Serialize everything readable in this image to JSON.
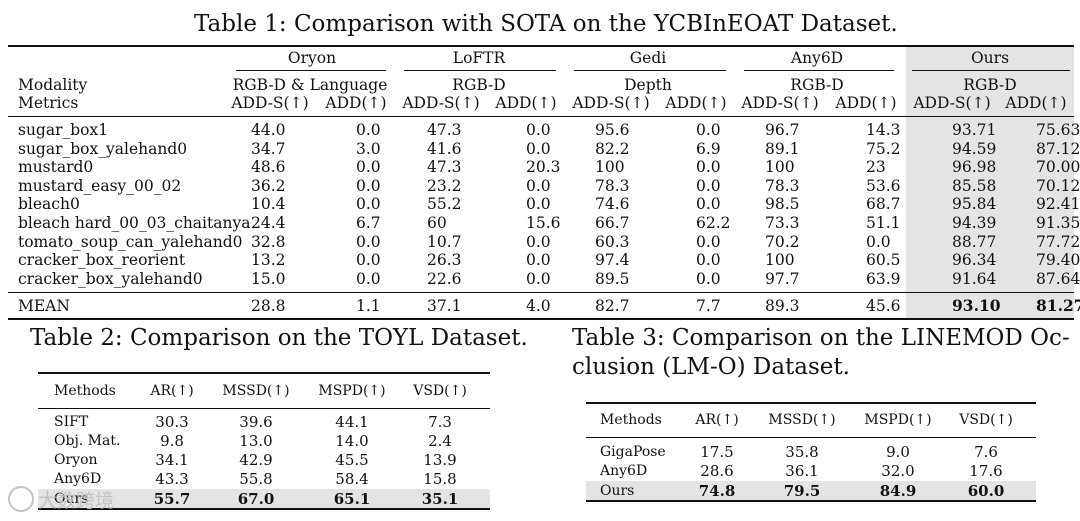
{
  "table1": {
    "caption": "Table 1:  Comparison with SOTA on the YCBInEOAT Dataset.",
    "methods": [
      "Oryon",
      "LoFTR",
      "Gedi",
      "Any6D",
      "Ours"
    ],
    "modalities": [
      "RGB-D & Language",
      "RGB-D",
      "Depth",
      "RGB-D",
      "RGB-D"
    ],
    "row_label_modality": "Modality",
    "row_label_metrics": "Metrics",
    "metric_a": "ADD-S(↑)",
    "metric_b": "ADD(↑)",
    "rows": [
      {
        "name": "sugar_box1",
        "v": [
          "44.0",
          "0.0",
          "47.3",
          "0.0",
          "95.6",
          "0.0",
          "96.7",
          "14.3",
          "93.71",
          "75.63"
        ]
      },
      {
        "name": "sugar_box_yalehand0",
        "v": [
          "34.7",
          "3.0",
          "41.6",
          "0.0",
          "82.2",
          "6.9",
          "89.1",
          "75.2",
          "94.59",
          "87.12"
        ]
      },
      {
        "name": "mustard0",
        "v": [
          "48.6",
          "0.0",
          "47.3",
          "20.3",
          "100",
          "0.0",
          "100",
          "23",
          "96.98",
          "70.00"
        ]
      },
      {
        "name": "mustard_easy_00_02",
        "v": [
          "36.2",
          "0.0",
          "23.2",
          "0.0",
          "78.3",
          "0.0",
          "78.3",
          "53.6",
          "85.58",
          "70.12"
        ]
      },
      {
        "name": "bleach0",
        "v": [
          "10.4",
          "0.0",
          "55.2",
          "0.0",
          "74.6",
          "0.0",
          "98.5",
          "68.7",
          "95.84",
          "92.41"
        ]
      },
      {
        "name": "bleach hard_00_03_chaitanya",
        "v": [
          "24.4",
          "6.7",
          "60",
          "15.6",
          "66.7",
          "62.2",
          "73.3",
          "51.1",
          "94.39",
          "91.35"
        ]
      },
      {
        "name": "tomato_soup_can_yalehand0",
        "v": [
          "32.8",
          "0.0",
          "10.7",
          "0.0",
          "60.3",
          "0.0",
          "70.2",
          "0.0",
          "88.77",
          "77.72"
        ]
      },
      {
        "name": "cracker_box_reorient",
        "v": [
          "13.2",
          "0.0",
          "26.3",
          "0.0",
          "97.4",
          "0.0",
          "100",
          "60.5",
          "96.34",
          "79.40"
        ]
      },
      {
        "name": "cracker_box_yalehand0",
        "v": [
          "15.0",
          "0.0",
          "22.6",
          "0.0",
          "89.5",
          "0.0",
          "97.7",
          "63.9",
          "91.64",
          "87.64"
        ]
      }
    ],
    "mean": {
      "name": "MEAN",
      "v": [
        "28.8",
        "1.1",
        "37.1",
        "4.0",
        "82.7",
        "7.7",
        "89.3",
        "45.6",
        "93.10",
        "81.27"
      ]
    }
  },
  "table2": {
    "caption": "Table 2:  Comparison on the TOYL Dataset.",
    "headers": [
      "Methods",
      "AR(↑)",
      "MSSD(↑)",
      "MSPD(↑)",
      "VSD(↑)"
    ],
    "rows": [
      {
        "name": "SIFT",
        "v": [
          "30.3",
          "39.6",
          "44.1",
          "7.3"
        ]
      },
      {
        "name": "Obj. Mat.",
        "v": [
          "9.8",
          "13.0",
          "14.0",
          "2.4"
        ]
      },
      {
        "name": "Oryon",
        "v": [
          "34.1",
          "42.9",
          "45.5",
          "13.9"
        ]
      },
      {
        "name": "Any6D",
        "v": [
          "43.3",
          "55.8",
          "58.4",
          "15.8"
        ]
      }
    ],
    "ours": {
      "name": "Ours",
      "v": [
        "55.7",
        "67.0",
        "65.1",
        "35.1"
      ]
    }
  },
  "table3": {
    "caption_line1": "Table 3:  Comparison on the LINEMOD Oc-",
    "caption_line2": "clusion (LM-O) Dataset.",
    "headers": [
      "Methods",
      "AR(↑)",
      "MSSD(↑)",
      "MSPD(↑)",
      "VSD(↑)"
    ],
    "rows": [
      {
        "name": "GigaPose",
        "v": [
          "17.5",
          "35.8",
          "9.0",
          "7.6"
        ]
      },
      {
        "name": "Any6D",
        "v": [
          "28.6",
          "36.1",
          "32.0",
          "17.6"
        ]
      }
    ],
    "ours": {
      "name": "Ours",
      "v": [
        "74.8",
        "79.5",
        "84.9",
        "60.0"
      ]
    }
  },
  "watermark": "大数跨境"
}
